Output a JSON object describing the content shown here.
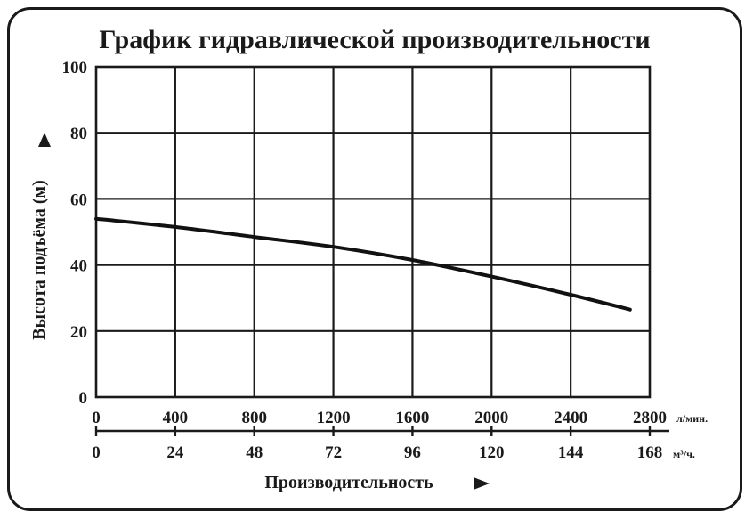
{
  "chart_data": {
    "type": "line",
    "title": "График гидравлической производительности",
    "ylabel": "Высота подъёма (м)",
    "xlabel": "Производительность",
    "ylim": [
      0,
      100
    ],
    "yticks": [
      "0",
      "20",
      "40",
      "60",
      "80",
      "100"
    ],
    "xlim": [
      0,
      2800
    ],
    "xticks_primary": [
      "0",
      "400",
      "800",
      "1200",
      "1600",
      "2000",
      "2400",
      "2800"
    ],
    "xunit_primary": "л/мин.",
    "xticks_secondary": [
      "0",
      "24",
      "48",
      "72",
      "96",
      "120",
      "144",
      "168"
    ],
    "xunit_secondary": "м³/ч.",
    "grid": true,
    "series": [
      {
        "x": [
          0,
          400,
          800,
          1200,
          1600,
          2000,
          2400,
          2700
        ],
        "y": [
          54,
          51.5,
          48.5,
          45.5,
          41.5,
          36.5,
          31,
          26.5
        ]
      }
    ]
  }
}
